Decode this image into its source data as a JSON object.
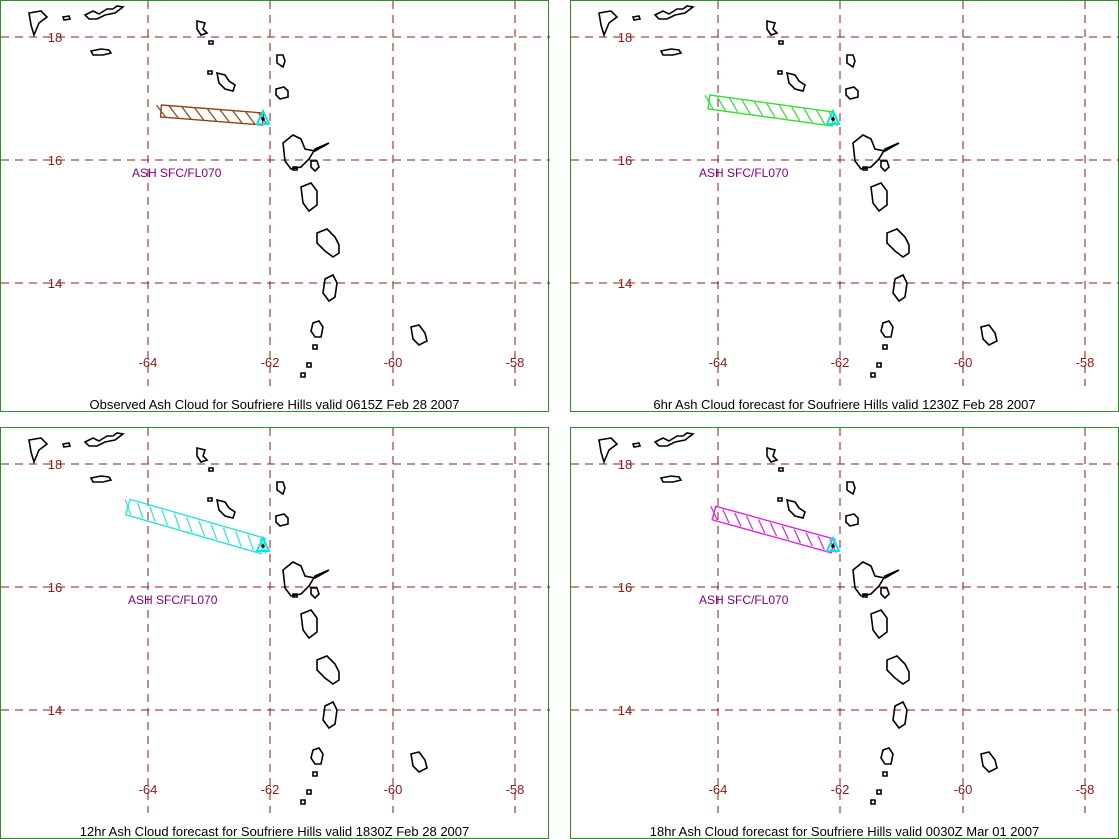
{
  "colors": {
    "grid": "#8b1a1a",
    "tick_label": "#8b1a1a",
    "coast": "#000000",
    "volcano": "#00e5e5",
    "ash_label": "#800080",
    "frame": "#2e8b2e"
  },
  "axes": {
    "lon_labels": [
      "-64",
      "-62",
      "-60",
      "-58"
    ],
    "lat_labels": [
      "18",
      "16",
      "14"
    ]
  },
  "panels": [
    {
      "caption": "Observed Ash Cloud for Soufriere  Hills valid 0615Z Feb 28 2007",
      "ash_label": "ASH SFC/FL070",
      "ash_color": "#8b4513"
    },
    {
      "caption": "6hr Ash Cloud forecast for Soufriere  Hills valid 1230Z Feb 28 2007",
      "ash_label": "ASH SFC/FL070",
      "ash_color": "#33dd33"
    },
    {
      "caption": "12hr Ash Cloud forecast for Soufriere  Hills valid 1830Z Feb 28 2007",
      "ash_label": "ASH SFC/FL070",
      "ash_color": "#33dddd"
    },
    {
      "caption": "18hr Ash Cloud forecast for Soufriere  Hills valid 0030Z Mar 01 2007",
      "ash_label": "ASH SFC/FL070",
      "ash_color": "#dd22dd"
    }
  ]
}
